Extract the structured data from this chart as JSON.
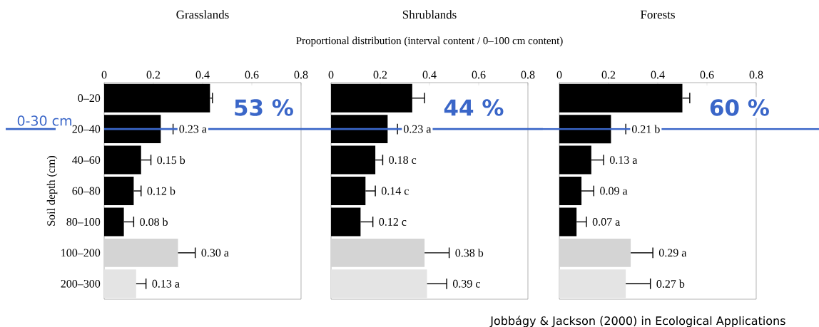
{
  "chart_data": [
    {
      "type": "bar",
      "orientation": "horizontal",
      "title": "Grasslands",
      "ylabel": "Soil depth (cm)",
      "categories": [
        "0–20",
        "20–40",
        "40–60",
        "60–80",
        "80–100",
        "100–200",
        "200–300"
      ],
      "values": [
        0.43,
        0.23,
        0.15,
        0.12,
        0.08,
        0.3,
        0.13
      ],
      "errors": [
        [
          0.43,
          0.44
        ],
        [
          0.23,
          0.28
        ],
        [
          0.15,
          0.19
        ],
        [
          0.12,
          0.15
        ],
        [
          0.08,
          0.12
        ],
        [
          0.3,
          0.37
        ],
        [
          0.13,
          0.17
        ]
      ],
      "value_labels": [
        null,
        "0.23 a",
        "0.15 b",
        "0.12 b",
        "0.08 b",
        "0.30 a",
        "0.13 a"
      ],
      "colors": [
        "#000000",
        "#000000",
        "#000000",
        "#000000",
        "#000000",
        "#d4d4d4",
        "#e4e4e4"
      ],
      "xlim": [
        0,
        0.8
      ],
      "xticks": [
        0,
        0.2,
        0.4,
        0.6,
        0.8
      ],
      "ref_lines": [
        {
          "axis": "y",
          "value": "20–40",
          "label": "0-30 cm",
          "color": "#3a66c8"
        }
      ],
      "annotations": [
        "53 %"
      ]
    },
    {
      "type": "bar",
      "orientation": "horizontal",
      "title": "Shrublands",
      "xlabel": "Proportional distribution (interval content / 0–100 cm content)",
      "categories": [
        "0–20",
        "20–40",
        "40–60",
        "60–80",
        "80–100",
        "100–200",
        "200–300"
      ],
      "values": [
        0.33,
        0.23,
        0.18,
        0.14,
        0.12,
        0.38,
        0.39
      ],
      "errors": [
        [
          0.33,
          0.38
        ],
        [
          0.23,
          0.27
        ],
        [
          0.18,
          0.21
        ],
        [
          0.14,
          0.18
        ],
        [
          0.12,
          0.17
        ],
        [
          0.38,
          0.48
        ],
        [
          0.39,
          0.47
        ]
      ],
      "value_labels": [
        null,
        "0.23 a",
        "0.18 c",
        "0.14 c",
        "0.12 c",
        "0.38 b",
        "0.39 c"
      ],
      "colors": [
        "#000000",
        "#000000",
        "#000000",
        "#000000",
        "#000000",
        "#d4d4d4",
        "#e4e4e4"
      ],
      "xlim": [
        0,
        0.8
      ],
      "xticks": [
        0,
        0.2,
        0.4,
        0.6,
        0.8
      ],
      "tick_labels": "x",
      "ref_lines": [
        {
          "axis": "y",
          "value": "20–40",
          "color": "#3a66c8"
        }
      ],
      "annotations": [
        "44 %"
      ]
    },
    {
      "type": "bar",
      "orientation": "horizontal",
      "title": "Forests",
      "categories": [
        "0–20",
        "20–40",
        "40–60",
        "60–80",
        "80–100",
        "100–200",
        "200–300"
      ],
      "values": [
        0.5,
        0.21,
        0.13,
        0.09,
        0.07,
        0.29,
        0.27
      ],
      "errors": [
        [
          0.5,
          0.53
        ],
        [
          0.21,
          0.27
        ],
        [
          0.13,
          0.18
        ],
        [
          0.09,
          0.14
        ],
        [
          0.07,
          0.11
        ],
        [
          0.29,
          0.38
        ],
        [
          0.27,
          0.37
        ]
      ],
      "value_labels": [
        null,
        "0.21 b",
        "0.13 a",
        "0.09 a",
        "0.07 a",
        "0.29 a",
        "0.27 b"
      ],
      "colors": [
        "#000000",
        "#000000",
        "#000000",
        "#000000",
        "#000000",
        "#d4d4d4",
        "#e4e4e4"
      ],
      "xlim": [
        0,
        0.8
      ],
      "xticks": [
        0,
        0.2,
        0.4,
        0.6,
        0.8
      ],
      "tick_labels": "x",
      "ref_lines": [
        {
          "axis": "y",
          "value": "20–40",
          "color": "#3a66c8"
        }
      ],
      "annotations": [
        "60 %",
        "Jobbágy & Jackson (2000) in Ecological Applications"
      ]
    }
  ]
}
